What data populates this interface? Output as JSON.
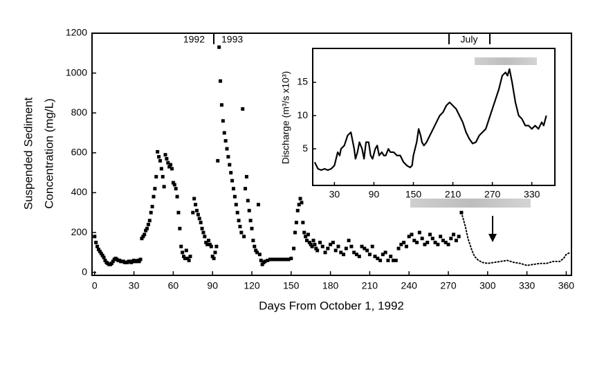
{
  "chart_data": [
    {
      "type": "scatter",
      "xlabel": "Days From October 1, 1992",
      "ylabel": [
        "Suspended Sediment",
        "Concentration (mg/L)"
      ],
      "annotations": [
        "1992",
        "1993",
        "July"
      ],
      "xlim": [
        -2,
        364
      ],
      "ylim": [
        -15,
        1200
      ],
      "xticks": [
        0,
        30,
        60,
        90,
        120,
        150,
        180,
        210,
        240,
        270,
        300,
        330,
        360
      ],
      "yticks": [
        0,
        200,
        400,
        600,
        800,
        1000,
        1200
      ],
      "series": [
        {
          "style": "square",
          "color": "#000000",
          "x": [
            0,
            1,
            2,
            3,
            4,
            5,
            6,
            7,
            8,
            9,
            10,
            11,
            12,
            13,
            14,
            15,
            16,
            17,
            18,
            19,
            20,
            21,
            22,
            23,
            24,
            25,
            26,
            27,
            28,
            29,
            30,
            31,
            32,
            33,
            34,
            35,
            36,
            37,
            38,
            39,
            40,
            41,
            42,
            43,
            44,
            45,
            46,
            47,
            48,
            49,
            50,
            51,
            52,
            53,
            54,
            55,
            56,
            57,
            58,
            59,
            60,
            61,
            62,
            63,
            64,
            65,
            66,
            67,
            68,
            69,
            70,
            71,
            72,
            73,
            75,
            76,
            77,
            78,
            79,
            80,
            81,
            82,
            83,
            84,
            85,
            86,
            87,
            88,
            89,
            90,
            91,
            92,
            93,
            94,
            95,
            96,
            97,
            98,
            99,
            100,
            101,
            102,
            103,
            104,
            105,
            106,
            107,
            108,
            109,
            110,
            111,
            112,
            113,
            114,
            115,
            116,
            117,
            118,
            119,
            120,
            121,
            122,
            123,
            124,
            125,
            126,
            127,
            128,
            129,
            130,
            132,
            134,
            136,
            138,
            140,
            142,
            144,
            146,
            148,
            150,
            152,
            153,
            154,
            155,
            156,
            157,
            158,
            159,
            160,
            161,
            162,
            163,
            164,
            165,
            166,
            167,
            168,
            169,
            170,
            172,
            174,
            176,
            178,
            180,
            182,
            184,
            186,
            188,
            190,
            192,
            194,
            196,
            198,
            200,
            202,
            204,
            206,
            208,
            210,
            212,
            214,
            216,
            218,
            220,
            222,
            224,
            226,
            228,
            230,
            232,
            234,
            236,
            238,
            240,
            242,
            244,
            246,
            248,
            250,
            252,
            254,
            256,
            258,
            260,
            262,
            264,
            266,
            268,
            270,
            272,
            274,
            276,
            278,
            280
          ],
          "values": [
            180,
            150,
            130,
            115,
            105,
            95,
            85,
            75,
            60,
            50,
            45,
            40,
            40,
            45,
            55,
            65,
            70,
            65,
            60,
            60,
            55,
            55,
            55,
            50,
            50,
            50,
            55,
            55,
            50,
            55,
            60,
            55,
            55,
            60,
            55,
            65,
            170,
            180,
            190,
            210,
            220,
            240,
            260,
            300,
            330,
            380,
            420,
            480,
            605,
            580,
            560,
            520,
            480,
            430,
            590,
            570,
            550,
            530,
            540,
            520,
            450,
            440,
            420,
            380,
            300,
            220,
            130,
            100,
            80,
            70,
            110,
            70,
            60,
            80,
            300,
            370,
            340,
            310,
            290,
            270,
            250,
            220,
            200,
            180,
            150,
            140,
            160,
            140,
            130,
            80,
            70,
            100,
            130,
            560,
            1130,
            960,
            840,
            760,
            700,
            660,
            620,
            580,
            540,
            500,
            460,
            420,
            380,
            340,
            300,
            260,
            230,
            200,
            820,
            180,
            420,
            480,
            360,
            310,
            260,
            220,
            160,
            130,
            110,
            100,
            340,
            90,
            60,
            40,
            50,
            55,
            60,
            65,
            65,
            65,
            65,
            65,
            65,
            65,
            65,
            70,
            120,
            200,
            250,
            310,
            340,
            370,
            350,
            250,
            200,
            180,
            160,
            190,
            150,
            140,
            130,
            160,
            140,
            120,
            110,
            150,
            130,
            100,
            120,
            140,
            150,
            110,
            130,
            100,
            90,
            120,
            160,
            130,
            100,
            90,
            80,
            130,
            120,
            110,
            90,
            130,
            80,
            70,
            60,
            90,
            100,
            60,
            80,
            60,
            60,
            120,
            140,
            150,
            130,
            180,
            190,
            160,
            150,
            200,
            170,
            140,
            150,
            190,
            170,
            150,
            140,
            180,
            160,
            150,
            140,
            170,
            190,
            160,
            180,
            300
          ]
        },
        {
          "style": "dotted",
          "color": "#000000",
          "x": [
            280,
            283,
            285,
            288,
            290,
            293,
            296,
            300,
            305,
            310,
            315,
            320,
            325,
            330,
            335,
            340,
            345,
            350,
            355,
            358,
            360,
            363
          ],
          "values": [
            300,
            230,
            170,
            110,
            80,
            60,
            50,
            45,
            50,
            55,
            60,
            50,
            45,
            35,
            40,
            45,
            45,
            55,
            55,
            70,
            90,
            100
          ]
        }
      ]
    },
    {
      "type": "line",
      "ylabel": "Discharge (m³/s  x10³)",
      "xlim": [
        -3,
        365
      ],
      "ylim": [
        -0.5,
        20.1
      ],
      "xticks": [
        30,
        90,
        150,
        210,
        270,
        330
      ],
      "yticks": [
        5,
        10,
        15
      ],
      "series": [
        {
          "color": "#000000",
          "x": [
            0,
            5,
            10,
            15,
            20,
            25,
            30,
            35,
            38,
            40,
            45,
            50,
            55,
            60,
            62,
            65,
            68,
            72,
            75,
            78,
            82,
            85,
            88,
            92,
            95,
            98,
            102,
            105,
            108,
            112,
            115,
            120,
            125,
            130,
            135,
            140,
            145,
            148,
            150,
            155,
            158,
            161,
            163,
            166,
            170,
            175,
            180,
            185,
            190,
            195,
            200,
            205,
            210,
            215,
            220,
            225,
            230,
            235,
            240,
            245,
            250,
            255,
            260,
            265,
            270,
            275,
            280,
            285,
            290,
            293,
            296,
            300,
            305,
            310,
            315,
            320,
            325,
            330,
            335,
            340,
            345,
            348,
            352
          ],
          "values": [
            3,
            2,
            1.8,
            2,
            1.8,
            2,
            2.5,
            4.5,
            4,
            5,
            5.5,
            7,
            7.5,
            5,
            3.5,
            4.5,
            6,
            5,
            3.5,
            6,
            6,
            4,
            3.5,
            5,
            5.5,
            4,
            4.5,
            4,
            4,
            5,
            4.5,
            4.5,
            4,
            4,
            3,
            2.5,
            2.2,
            2.5,
            4,
            6,
            8,
            7,
            6,
            5.5,
            6,
            7,
            8,
            9,
            10,
            10.5,
            11.5,
            12,
            11.5,
            11,
            10,
            9,
            7.5,
            6.5,
            5.8,
            6,
            7,
            7.5,
            8,
            9.5,
            11,
            12.5,
            14,
            16,
            16.5,
            16,
            17,
            15,
            12,
            10,
            9.5,
            8.5,
            8.5,
            8,
            8.5,
            8,
            9,
            8.5,
            10
          ]
        }
      ]
    }
  ]
}
